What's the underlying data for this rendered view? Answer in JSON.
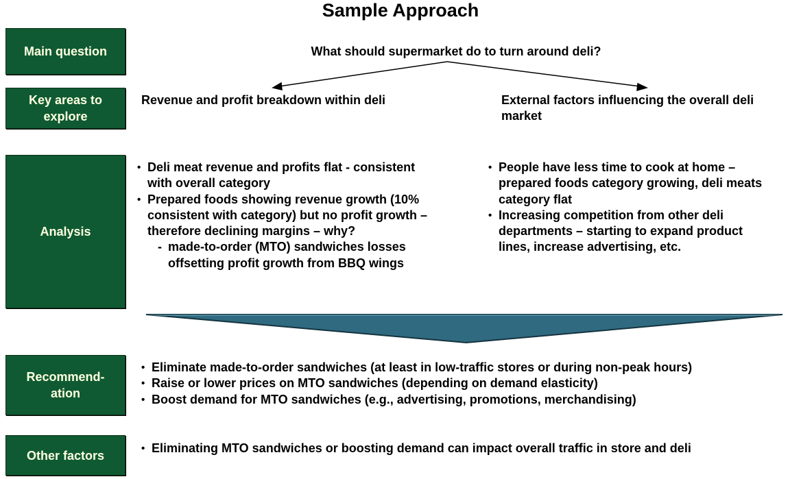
{
  "title": "Sample Approach",
  "labels": {
    "main_question": "Main question",
    "key_areas": "Key areas to explore",
    "analysis": "Analysis",
    "recommendation": "Recommend-ation",
    "other_factors": "Other factors"
  },
  "main_question": "What should supermarket do to turn around deli?",
  "key_areas": {
    "left": "Revenue and profit breakdown within deli",
    "right": "External factors influencing the overall deli market"
  },
  "analysis": {
    "left": [
      "Deli meat revenue and profits flat - consistent with overall category",
      "Prepared foods showing revenue growth (10% consistent with category) but no profit growth – therefore declining margins – why?"
    ],
    "left_sub": [
      "made-to-order (MTO) sandwiches losses offsetting profit growth from BBQ wings"
    ],
    "right": [
      "People have less time to cook at home – prepared foods category growing, deli meats category flat",
      "Increasing competition from other deli departments – starting to expand product lines, increase advertising, etc."
    ]
  },
  "recommendation": [
    "Eliminate made-to-order sandwiches (at least in low-traffic stores or during non-peak hours)",
    "Raise or lower prices on MTO sandwiches (depending on demand elasticity)",
    "Boost demand for MTO sandwiches (e.g., advertising, promotions, merchandising)"
  ],
  "other_factors": [
    "Eliminating MTO sandwiches or boosting demand can impact overall traffic in store and deli"
  ],
  "colors": {
    "label_bg": "#0f5a32",
    "label_text": "#ffffe0",
    "funnel": "#2f6a80"
  }
}
